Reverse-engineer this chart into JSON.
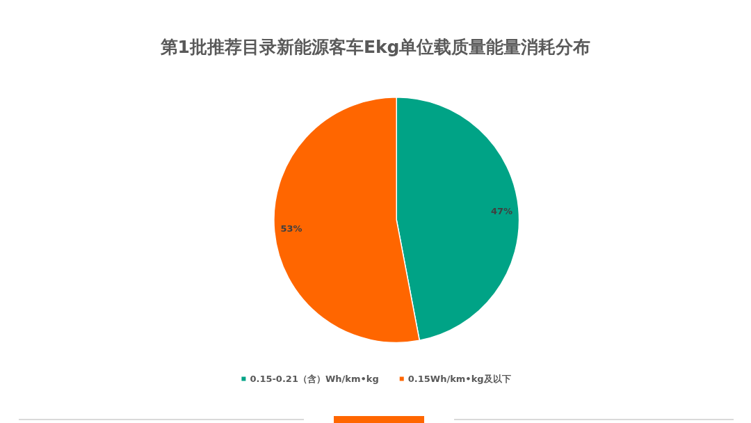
{
  "chart_data": {
    "type": "pie",
    "title": "第1批推荐目录新能源客车Ekg单位载质量能量消耗分布",
    "categories": [
      "0.15-0.21（含）Wh/km•kg",
      "0.15Wh/km•kg及以下"
    ],
    "values": [
      47,
      53
    ],
    "colors": [
      "#00a386",
      "#ff6600"
    ],
    "value_labels": [
      "47%",
      "53%"
    ],
    "legend": "bottom"
  }
}
